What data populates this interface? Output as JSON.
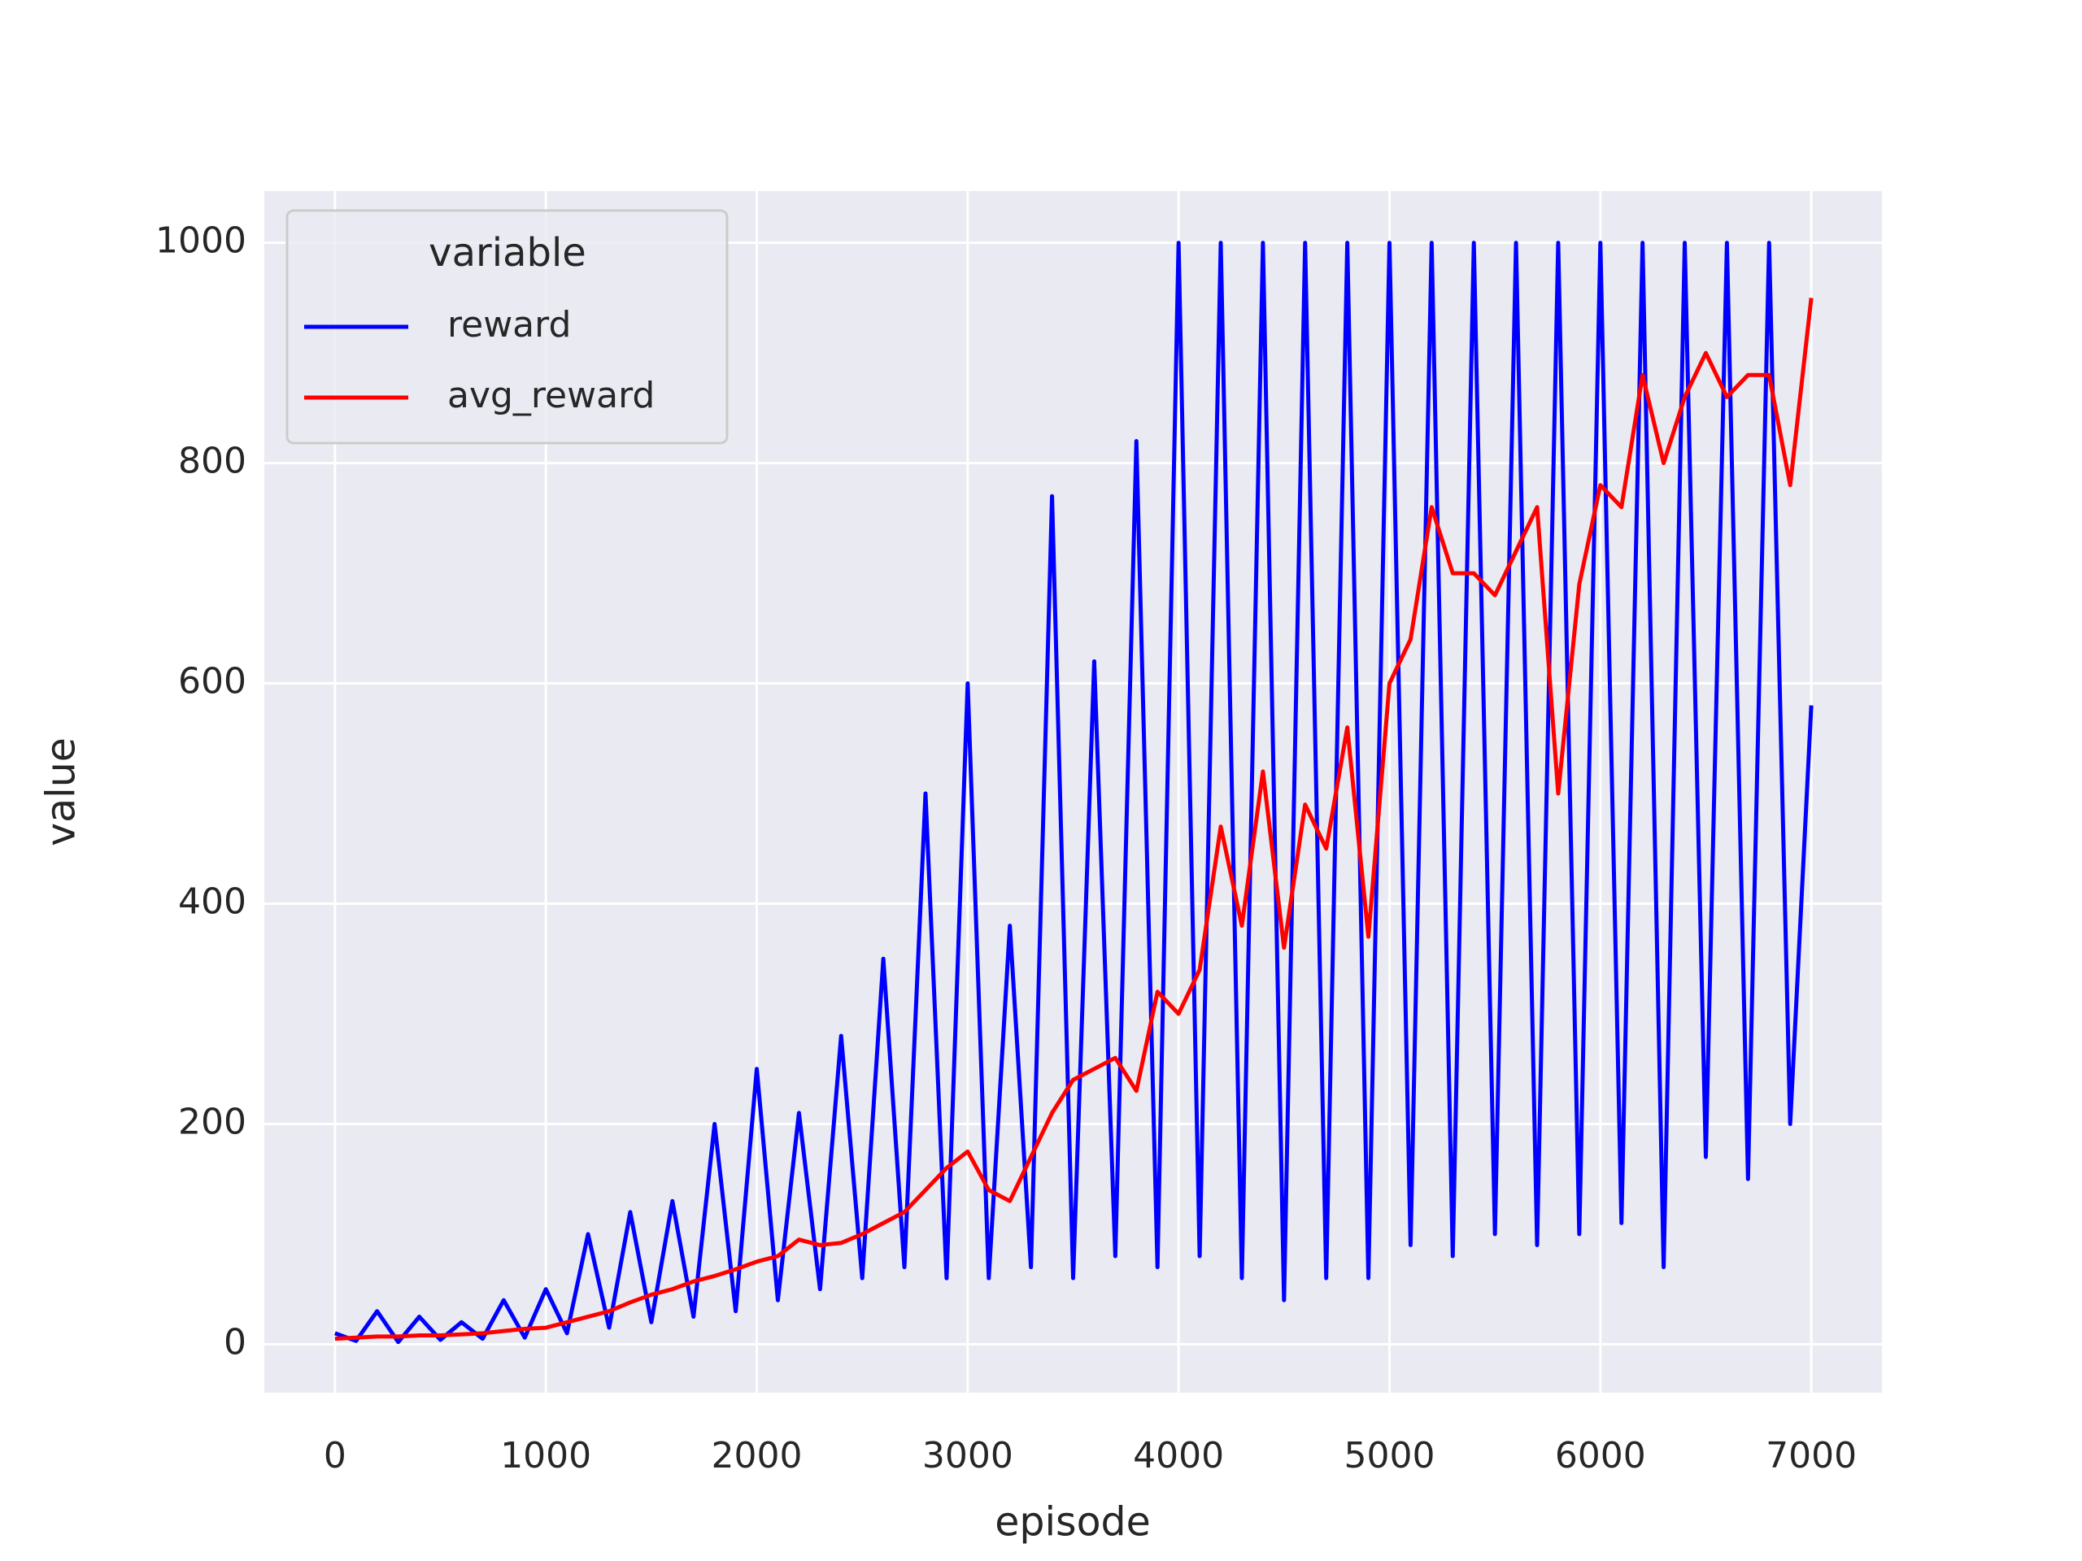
{
  "chart_data": {
    "type": "line",
    "x_label": "episode",
    "y_label": "value",
    "legend_title": "variable",
    "legend_position": "upper left",
    "grid": true,
    "background": "#eaeaf2",
    "xlim": [
      -335,
      7335
    ],
    "ylim": [
      -44,
      1047
    ],
    "xticks": [
      0,
      1000,
      2000,
      3000,
      4000,
      5000,
      6000,
      7000
    ],
    "yticks": [
      0,
      200,
      400,
      600,
      800,
      1000
    ],
    "x": [
      0,
      100,
      200,
      300,
      400,
      500,
      600,
      700,
      800,
      900,
      1000,
      1100,
      1200,
      1300,
      1400,
      1500,
      1600,
      1700,
      1800,
      1900,
      2000,
      2100,
      2200,
      2300,
      2400,
      2500,
      2600,
      2700,
      2800,
      2900,
      3000,
      3100,
      3200,
      3300,
      3400,
      3500,
      3600,
      3700,
      3800,
      3900,
      4000,
      4100,
      4200,
      4300,
      4400,
      4500,
      4600,
      4700,
      4800,
      4900,
      5000,
      5100,
      5200,
      5300,
      5400,
      5500,
      5600,
      5700,
      5800,
      5900,
      6000,
      6100,
      6200,
      6300,
      6400,
      6500,
      6600,
      6700,
      6800,
      6900,
      7000
    ],
    "series": [
      {
        "name": "reward",
        "color": "#0000ff",
        "values": [
          10,
          3,
          30,
          2,
          25,
          4,
          20,
          5,
          40,
          6,
          50,
          10,
          100,
          15,
          120,
          20,
          130,
          25,
          200,
          30,
          250,
          40,
          210,
          50,
          280,
          60,
          350,
          70,
          500,
          60,
          600,
          60,
          380,
          70,
          770,
          60,
          620,
          80,
          820,
          70,
          1000,
          80,
          1000,
          60,
          1000,
          40,
          1000,
          60,
          1000,
          60,
          1000,
          90,
          1000,
          80,
          1000,
          100,
          1000,
          90,
          1000,
          100,
          1000,
          110,
          1000,
          70,
          1000,
          170,
          1000,
          150,
          1000,
          200,
          580
        ]
      },
      {
        "name": "avg_reward",
        "color": "#ff0000",
        "values": [
          5,
          6,
          7,
          7,
          8,
          8,
          9,
          10,
          12,
          14,
          15,
          20,
          25,
          30,
          38,
          45,
          50,
          57,
          62,
          68,
          75,
          80,
          95,
          90,
          92,
          100,
          110,
          120,
          140,
          160,
          175,
          140,
          130,
          170,
          210,
          240,
          250,
          260,
          230,
          320,
          300,
          340,
          470,
          380,
          520,
          360,
          490,
          450,
          560,
          370,
          600,
          640,
          760,
          700,
          700,
          680,
          720,
          760,
          500,
          690,
          780,
          760,
          880,
          800,
          860,
          900,
          860,
          880,
          880,
          780,
          950
        ]
      }
    ]
  }
}
